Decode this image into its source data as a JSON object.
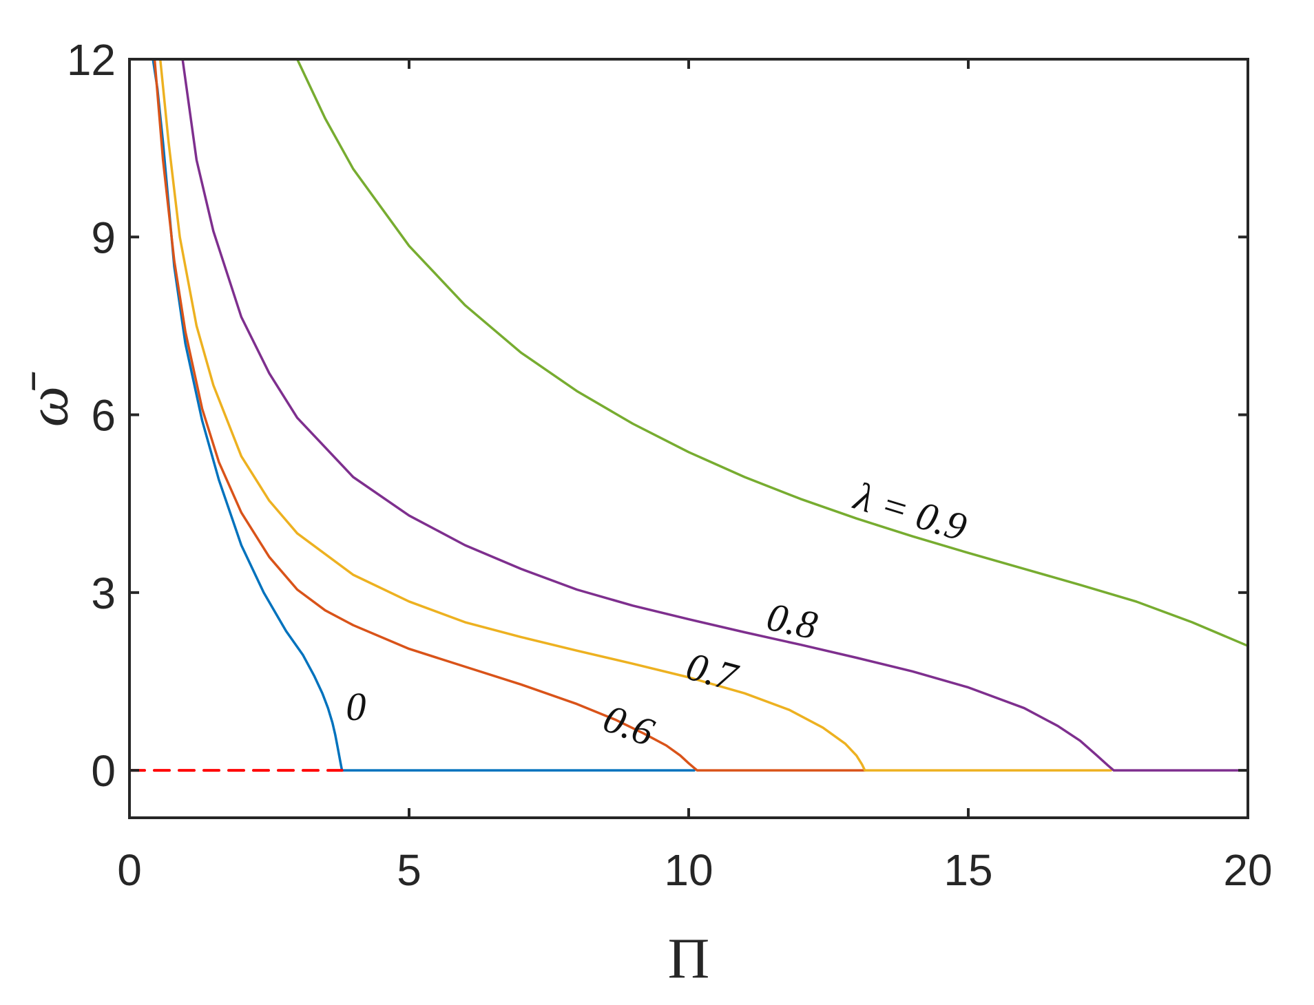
{
  "chart_data": {
    "type": "line",
    "xlabel": "Π",
    "ylabel": "ω̄",
    "xlim": [
      0,
      20
    ],
    "ylim": [
      -0.8,
      12
    ],
    "xticks": [
      0,
      5,
      10,
      15,
      20
    ],
    "yticks": [
      0,
      3,
      6,
      9,
      12
    ],
    "xtick_labels": [
      "0",
      "5",
      "10",
      "15",
      "20"
    ],
    "ytick_labels": [
      "0",
      "3",
      "6",
      "9",
      "12"
    ],
    "grid": false,
    "series": [
      {
        "label": "0",
        "color": "#0072BD",
        "dashed": false,
        "x": [
          0.42,
          0.5,
          0.6,
          0.8,
          1.0,
          1.3,
          1.6,
          2.0,
          2.4,
          2.8,
          3.1,
          3.3,
          3.45,
          3.55,
          3.63,
          3.68,
          3.72,
          3.75,
          3.78,
          3.8,
          5,
          7,
          9,
          10.1
        ],
        "y": [
          12,
          11.5,
          10.6,
          8.5,
          7.2,
          5.9,
          4.9,
          3.8,
          3.0,
          2.35,
          1.95,
          1.6,
          1.3,
          1.05,
          0.8,
          0.6,
          0.4,
          0.25,
          0.1,
          0.0,
          0.0,
          0.0,
          0.0,
          0.0
        ]
      },
      {
        "label": "0.6",
        "color": "#D95319",
        "dashed": false,
        "x": [
          0.45,
          0.6,
          0.8,
          1.0,
          1.3,
          1.6,
          2.0,
          2.5,
          3.0,
          3.5,
          4.0,
          5.0,
          6.0,
          7.0,
          8.0,
          8.7,
          9.2,
          9.6,
          9.85,
          10.0,
          10.1,
          10.15,
          11,
          12,
          13.15
        ],
        "y": [
          12,
          10.3,
          8.6,
          7.4,
          6.1,
          5.2,
          4.35,
          3.6,
          3.05,
          2.7,
          2.45,
          2.05,
          1.75,
          1.45,
          1.12,
          0.85,
          0.62,
          0.42,
          0.25,
          0.12,
          0.04,
          0.0,
          0.0,
          0.0,
          0.0
        ]
      },
      {
        "label": "0.7",
        "color": "#EDB120",
        "dashed": false,
        "x": [
          0.55,
          0.7,
          0.9,
          1.2,
          1.5,
          2.0,
          2.5,
          3.0,
          4.0,
          5.0,
          6.0,
          7.0,
          8.0,
          9.0,
          10.0,
          11.0,
          11.8,
          12.4,
          12.8,
          13.0,
          13.1,
          13.15,
          14,
          16,
          17.55
        ],
        "y": [
          12,
          10.6,
          9.0,
          7.5,
          6.5,
          5.3,
          4.55,
          4.0,
          3.3,
          2.85,
          2.5,
          2.25,
          2.02,
          1.8,
          1.57,
          1.3,
          1.02,
          0.72,
          0.45,
          0.25,
          0.1,
          0.0,
          0.0,
          0.0,
          0.0
        ]
      },
      {
        "label": "0.8",
        "color": "#7E2F8E",
        "dashed": false,
        "x": [
          0.95,
          1.2,
          1.5,
          2.0,
          2.5,
          3.0,
          4.0,
          5.0,
          6.0,
          7.0,
          8.0,
          9.0,
          10.0,
          11.0,
          12.0,
          13.0,
          14.0,
          15.0,
          16.0,
          16.6,
          17.0,
          17.3,
          17.5,
          17.6,
          18.5,
          19.5,
          20.0
        ],
        "y": [
          12,
          10.3,
          9.1,
          7.65,
          6.7,
          5.95,
          4.95,
          4.3,
          3.8,
          3.4,
          3.05,
          2.78,
          2.55,
          2.33,
          2.12,
          1.9,
          1.67,
          1.4,
          1.05,
          0.75,
          0.5,
          0.25,
          0.08,
          0.0,
          0.0,
          0.0,
          0.0
        ]
      },
      {
        "label": "λ = 0.9",
        "color": "#77AC30",
        "dashed": false,
        "x": [
          3.0,
          3.5,
          4.0,
          5.0,
          6.0,
          7.0,
          8.0,
          9.0,
          10.0,
          11.0,
          12.0,
          13.0,
          14.0,
          15.0,
          16.0,
          17.0,
          18.0,
          19.0,
          20.0
        ],
        "y": [
          12,
          11.0,
          10.15,
          8.85,
          7.85,
          7.05,
          6.4,
          5.85,
          5.37,
          4.95,
          4.58,
          4.25,
          3.95,
          3.67,
          3.4,
          3.13,
          2.85,
          2.5,
          2.1
        ]
      },
      {
        "label": "",
        "color": "#FF0000",
        "dashed": true,
        "x": [
          0,
          3.8
        ],
        "y": [
          0,
          0
        ]
      }
    ],
    "annotations": [
      {
        "text": "0",
        "x": 4.05,
        "y": 0.85,
        "rotate": 0
      },
      {
        "text": "0.6",
        "x": 8.85,
        "y": 0.55,
        "rotate": 20
      },
      {
        "text": "0.7",
        "x": 10.35,
        "y": 1.45,
        "rotate": 15
      },
      {
        "text": "0.8",
        "x": 11.8,
        "y": 2.3,
        "rotate": 12
      },
      {
        "text": "λ = 0.9",
        "x": 13.9,
        "y": 4.15,
        "rotate": 17
      }
    ]
  }
}
